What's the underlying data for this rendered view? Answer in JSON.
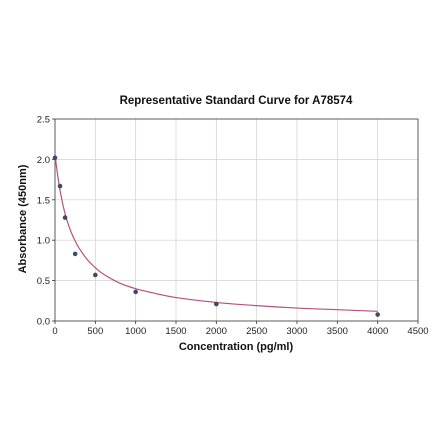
{
  "chart_data": {
    "type": "scatter",
    "title": "Representative Standard Curve for A78574",
    "xlabel": "Concentration (pg/ml)",
    "ylabel": "Absorbance (450nm)",
    "xlim": [
      0,
      4500
    ],
    "ylim": [
      0,
      2.5
    ],
    "xticks": [
      "0",
      "500",
      "1000",
      "1500",
      "2000",
      "2500",
      "3000",
      "3500",
      "4000",
      "4500"
    ],
    "yticks": [
      "0.0",
      "0.5",
      "1.0",
      "1.5",
      "2.0",
      "2.5"
    ],
    "grid": true,
    "series": [
      {
        "x": [
          0,
          62.5,
          125,
          250,
          500,
          1000,
          2000,
          4000
        ],
        "y": [
          2.02,
          1.67,
          1.28,
          0.83,
          0.57,
          0.36,
          0.21,
          0.08
        ],
        "point_color": "#3d4a6b"
      }
    ],
    "fit_curve": {
      "color": "#b5527a",
      "x": [
        0,
        25,
        50,
        75,
        100,
        125,
        150,
        200,
        250,
        300,
        400,
        500,
        600,
        800,
        1000,
        1250,
        1500,
        2000,
        2500,
        3000,
        3500,
        4000
      ],
      "y": [
        2.06,
        1.86,
        1.69,
        1.55,
        1.43,
        1.33,
        1.24,
        1.1,
        0.99,
        0.9,
        0.76,
        0.66,
        0.58,
        0.47,
        0.4,
        0.34,
        0.29,
        0.23,
        0.19,
        0.16,
        0.14,
        0.12
      ]
    }
  }
}
